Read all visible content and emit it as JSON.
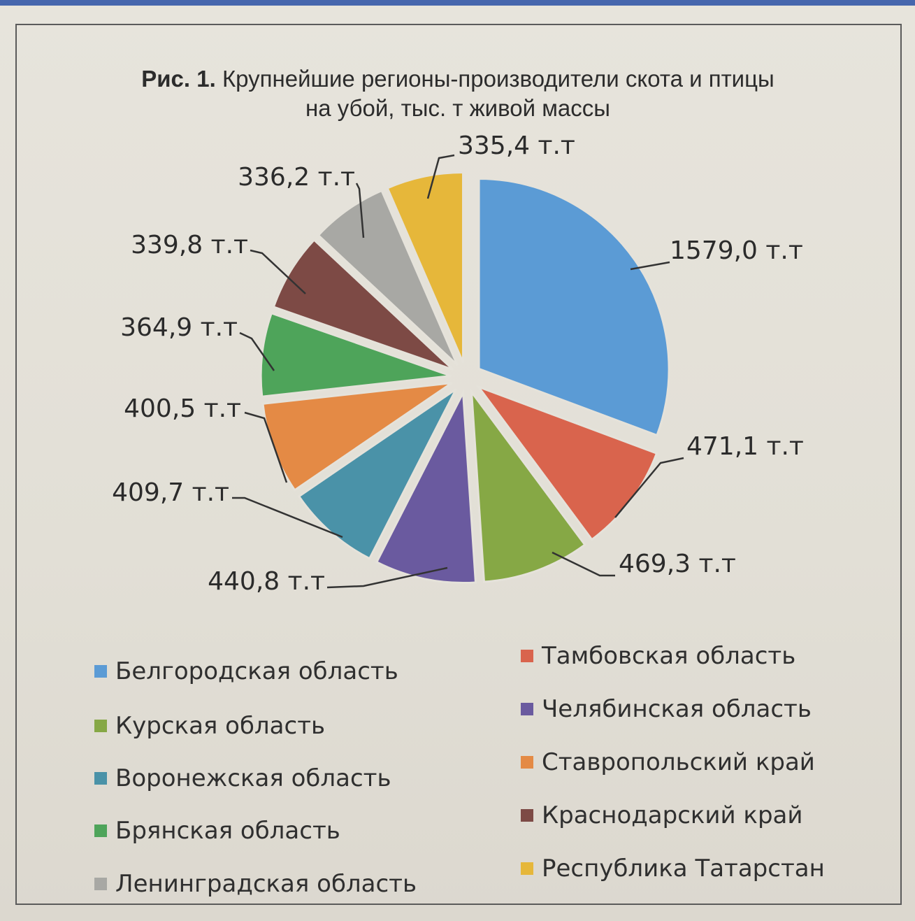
{
  "title": {
    "prefix": "Рис. 1.",
    "line1": "Крупнейшие регионы-производители скота и птицы",
    "line2": "на убой, тыс. т живой массы"
  },
  "chart_data": {
    "type": "pie",
    "title": "Крупнейшие регионы-производители скота и птицы на убой, тыс. т живой массы",
    "unit": "тыс. т живой массы",
    "legend_position": "bottom",
    "slices": [
      {
        "name": "Белгородская область",
        "value": 1579.0,
        "label": "1579,0  т.т",
        "color": "#5b9bd5"
      },
      {
        "name": "Тамбовская область",
        "value": 471.1,
        "label": "471,1 т.т",
        "color": "#d9644d"
      },
      {
        "name": "Курская область",
        "value": 469.3,
        "label": "469,3 т.т",
        "color": "#86a845"
      },
      {
        "name": "Челябинская область",
        "value": 440.8,
        "label": "440,8 т.т",
        "color": "#6a5a9f"
      },
      {
        "name": "Воронежская область",
        "value": 409.7,
        "label": "409,7 т.т",
        "color": "#4a92a8"
      },
      {
        "name": "Ставропольский край",
        "value": 400.5,
        "label": "400,5 т.т",
        "color": "#e48a45"
      },
      {
        "name": "Брянская область",
        "value": 364.9,
        "label": "364,9 т.т",
        "color": "#4ea45a"
      },
      {
        "name": "Краснодарский край",
        "value": 339.8,
        "label": "339,8 т.т",
        "color": "#7d4a45"
      },
      {
        "name": "Ленинградская область",
        "value": 336.2,
        "label": "336,2 т.т",
        "color": "#a8a8a4"
      },
      {
        "name": "Республика Татарстан",
        "value": 335.4,
        "label": "335,4 т.т",
        "color": "#e6b73a"
      }
    ]
  }
}
